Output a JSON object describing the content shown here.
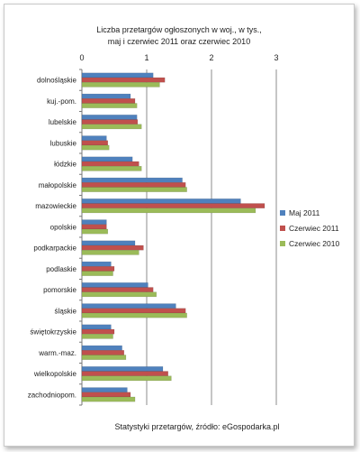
{
  "chart_data": {
    "type": "bar",
    "orientation": "horizontal",
    "title": "Liczba przetargów ogłoszonych w woj., w tys.,",
    "subtitle": "maj i czerwiec  2011  oraz czerwiec 2010",
    "xlim": [
      0,
      3
    ],
    "xticks": [
      "0",
      "1",
      "2",
      "3"
    ],
    "grid": true,
    "legend_position": "right",
    "categories": [
      "dolnośląskie",
      "kuj.-pom.",
      "lubelskie",
      "lubuskie",
      "łódzkie",
      "małopolskie",
      "mazowieckie",
      "opolskie",
      "podkarpackie",
      "podlaskie",
      "pomorskie",
      "śląskie",
      "świętokrzyskie",
      "warm.-maz.",
      "wielkopolskie",
      "zachodniopom."
    ],
    "series": [
      {
        "name": "Maj 2011",
        "color": "#4f81bd",
        "values": [
          1.1,
          0.75,
          0.85,
          0.38,
          0.78,
          1.55,
          2.45,
          0.38,
          0.82,
          0.45,
          1.02,
          1.45,
          0.45,
          0.62,
          1.25,
          0.7
        ]
      },
      {
        "name": "Czerwiec 2011",
        "color": "#c0504d",
        "values": [
          1.28,
          0.82,
          0.86,
          0.4,
          0.88,
          1.6,
          2.82,
          0.38,
          0.95,
          0.5,
          1.1,
          1.6,
          0.5,
          0.65,
          1.33,
          0.75
        ]
      },
      {
        "name": "Czerwiec 2010",
        "color": "#9bbb59",
        "values": [
          1.2,
          0.85,
          0.92,
          0.42,
          0.92,
          1.62,
          2.68,
          0.4,
          0.88,
          0.48,
          1.15,
          1.62,
          0.48,
          0.68,
          1.38,
          0.82
        ]
      }
    ],
    "source": "Statystyki przetargów, źródło: eGospodarka.pl"
  }
}
